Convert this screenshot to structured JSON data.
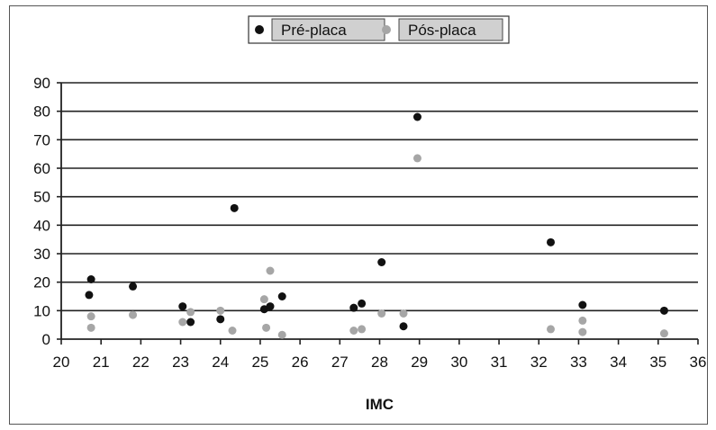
{
  "chart_data": {
    "type": "scatter",
    "title": "",
    "xlabel": "IMC",
    "ylabel": "",
    "xlim": [
      20,
      36
    ],
    "ylim": [
      0,
      90
    ],
    "x_ticks": [
      "20",
      "21",
      "22",
      "23",
      "24",
      "25",
      "26",
      "27",
      "28",
      "29",
      "30",
      "31",
      "32",
      "33",
      "34",
      "35",
      "36"
    ],
    "y_ticks": [
      "0",
      "10",
      "20",
      "30",
      "40",
      "50",
      "60",
      "70",
      "80",
      "90"
    ],
    "grid": "horizontal",
    "legend_position": "top-center",
    "series": [
      {
        "name": "Pré-placa",
        "color": "#111111",
        "points": [
          [
            20.75,
            21
          ],
          [
            20.7,
            15.5
          ],
          [
            21.8,
            18.5
          ],
          [
            23.05,
            11.5
          ],
          [
            23.25,
            6
          ],
          [
            24.0,
            7
          ],
          [
            24.35,
            46
          ],
          [
            25.1,
            10.5
          ],
          [
            25.25,
            11.5
          ],
          [
            25.55,
            15
          ],
          [
            27.35,
            11
          ],
          [
            27.55,
            12.5
          ],
          [
            28.05,
            27
          ],
          [
            28.6,
            4.5
          ],
          [
            28.95,
            78
          ],
          [
            32.3,
            34
          ],
          [
            33.1,
            12
          ],
          [
            35.15,
            10
          ]
        ]
      },
      {
        "name": "Pós-placa",
        "color": "#a6a6a6",
        "points": [
          [
            20.75,
            8
          ],
          [
            20.75,
            4
          ],
          [
            21.8,
            8.5
          ],
          [
            23.05,
            6
          ],
          [
            23.25,
            9.5
          ],
          [
            24.0,
            10
          ],
          [
            24.3,
            3
          ],
          [
            25.1,
            14
          ],
          [
            25.15,
            4
          ],
          [
            25.25,
            24
          ],
          [
            25.55,
            1.5
          ],
          [
            27.35,
            3
          ],
          [
            27.55,
            3.5
          ],
          [
            28.05,
            9
          ],
          [
            28.6,
            9
          ],
          [
            28.95,
            63.5
          ],
          [
            32.3,
            3.5
          ],
          [
            33.1,
            6.5
          ],
          [
            33.1,
            2.5
          ],
          [
            35.15,
            2
          ]
        ]
      }
    ]
  }
}
